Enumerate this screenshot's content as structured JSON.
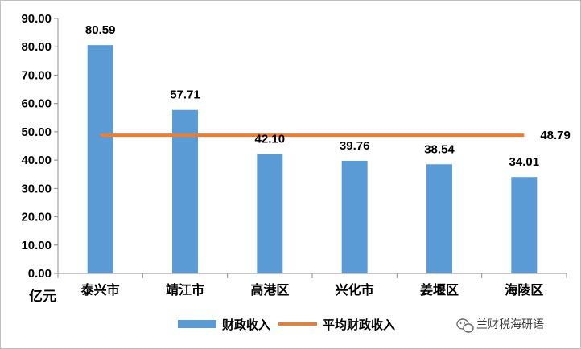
{
  "chart_data": {
    "type": "bar",
    "categories": [
      "泰兴市",
      "靖江市",
      "高港区",
      "兴化市",
      "姜堰区",
      "海陵区"
    ],
    "series": [
      {
        "name": "财政收入",
        "type": "bar",
        "values": [
          80.59,
          57.71,
          42.1,
          39.76,
          38.54,
          34.01
        ],
        "color": "#5b9bd5"
      },
      {
        "name": "平均财政收入",
        "type": "line",
        "values": [
          48.79,
          48.79,
          48.79,
          48.79,
          48.79,
          48.79
        ],
        "color": "#ed7d31"
      }
    ],
    "data_labels": [
      "80.59",
      "57.71",
      "42.10",
      "39.76",
      "38.54",
      "34.01"
    ],
    "average_label": "48.79",
    "y_ticks": [
      "0.00",
      "10.00",
      "20.00",
      "30.00",
      "40.00",
      "50.00",
      "60.00",
      "70.00",
      "80.00",
      "90.00"
    ],
    "ylim": [
      0,
      90
    ],
    "y_unit": "亿元",
    "title": "",
    "xlabel": "",
    "ylabel": "",
    "grid": false,
    "legend_position": "bottom"
  },
  "watermark": {
    "text": "兰财税海研语",
    "icon": "wechat-icon"
  }
}
